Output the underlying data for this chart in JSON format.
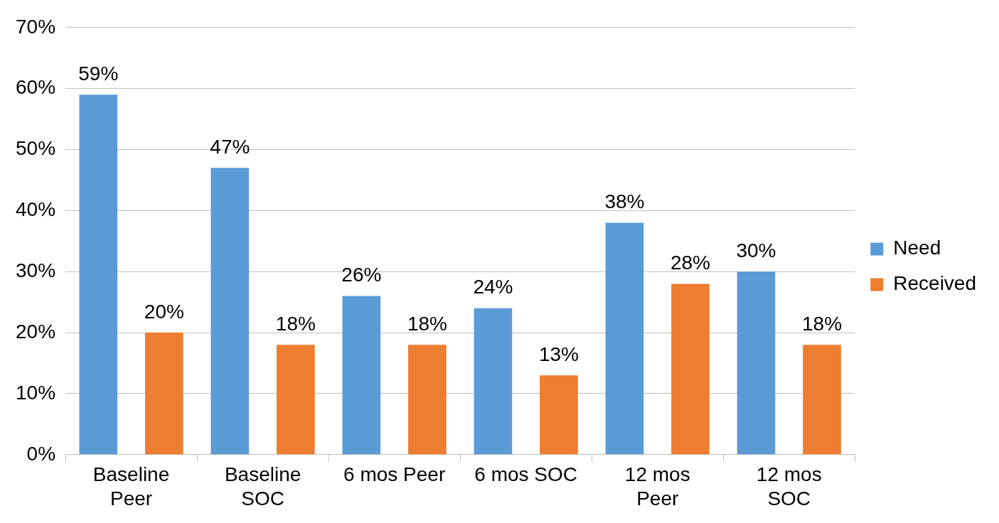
{
  "chart_data": {
    "type": "bar",
    "categories": [
      "Baseline Peer",
      "Baseline SOC",
      "6 mos Peer",
      "6 mos SOC",
      "12 mos Peer",
      "12 mos SOC"
    ],
    "series": [
      {
        "name": "Need",
        "color": "#5b9bd5",
        "values": [
          59,
          47,
          26,
          24,
          38,
          30
        ],
        "value_labels": [
          "59%",
          "47%",
          "26%",
          "24%",
          "38%",
          "30%"
        ]
      },
      {
        "name": "Received",
        "color": "#ed7d31",
        "values": [
          20,
          18,
          18,
          13,
          28,
          18
        ],
        "value_labels": [
          "20%",
          "18%",
          "18%",
          "13%",
          "28%",
          "18%"
        ]
      }
    ],
    "ylim": [
      0,
      70
    ],
    "yticks": [
      {
        "value": 0,
        "label": "0%"
      },
      {
        "value": 10,
        "label": "10%"
      },
      {
        "value": 20,
        "label": "20%"
      },
      {
        "value": 30,
        "label": "30%"
      },
      {
        "value": 40,
        "label": "40%"
      },
      {
        "value": 50,
        "label": "50%"
      },
      {
        "value": 60,
        "label": "60%"
      },
      {
        "value": 70,
        "label": "70%"
      }
    ],
    "grid": "y",
    "legend": "right"
  }
}
